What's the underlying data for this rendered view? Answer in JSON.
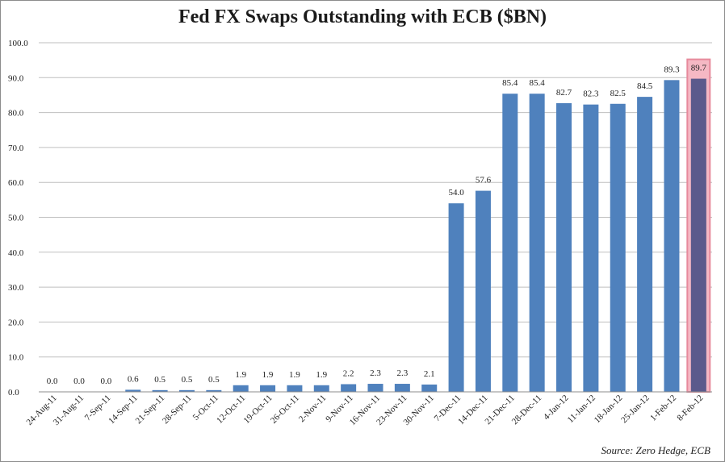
{
  "chart_data": {
    "type": "bar",
    "title": "Fed FX Swaps Outstanding with ECB ($BN)",
    "source": "Source: Zero Hedge, ECB",
    "categories": [
      "24-Aug-11",
      "31-Aug-11",
      "7-Sep-11",
      "14-Sep-11",
      "21-Sep-11",
      "28-Sep-11",
      "5-Oct-11",
      "12-Oct-11",
      "19-Oct-11",
      "26-Oct-11",
      "2-Nov-11",
      "9-Nov-11",
      "16-Nov-11",
      "23-Nov-11",
      "30-Nov-11",
      "7-Dec-11",
      "14-Dec-11",
      "21-Dec-11",
      "28-Dec-11",
      "4-Jan-12",
      "11-Jan-12",
      "18-Jan-12",
      "25-Jan-12",
      "1-Feb-12",
      "8-Feb-12"
    ],
    "values": [
      0.0,
      0.0,
      0.0,
      0.6,
      0.5,
      0.5,
      0.5,
      1.9,
      1.9,
      1.9,
      1.9,
      2.2,
      2.3,
      2.3,
      2.1,
      54.0,
      57.6,
      85.4,
      85.4,
      82.7,
      82.3,
      82.5,
      84.5,
      89.3,
      89.7
    ],
    "value_labels": [
      "0.0",
      "0.0",
      "0.0",
      "0.6",
      "0.5",
      "0.5",
      "0.5",
      "1.9",
      "1.9",
      "1.9",
      "1.9",
      "2.2",
      "2.3",
      "2.3",
      "2.1",
      "54.0",
      "57.6",
      "85.4",
      "85.4",
      "82.7",
      "82.3",
      "82.5",
      "84.5",
      "89.3",
      "89.7"
    ],
    "y_ticks": [
      "0.0",
      "10.0",
      "20.0",
      "30.0",
      "40.0",
      "50.0",
      "60.0",
      "70.0",
      "80.0",
      "90.0",
      "100.0"
    ],
    "ylim": [
      0,
      100
    ],
    "grid": true,
    "highlight_index": 24,
    "colors": {
      "bar": "#4f81bd",
      "highlight_bar": "#5b5a8c",
      "highlight_box_fill": "#f5b8c4",
      "highlight_box_stroke": "#e78a9c",
      "grid": "#bfbfbf"
    }
  }
}
